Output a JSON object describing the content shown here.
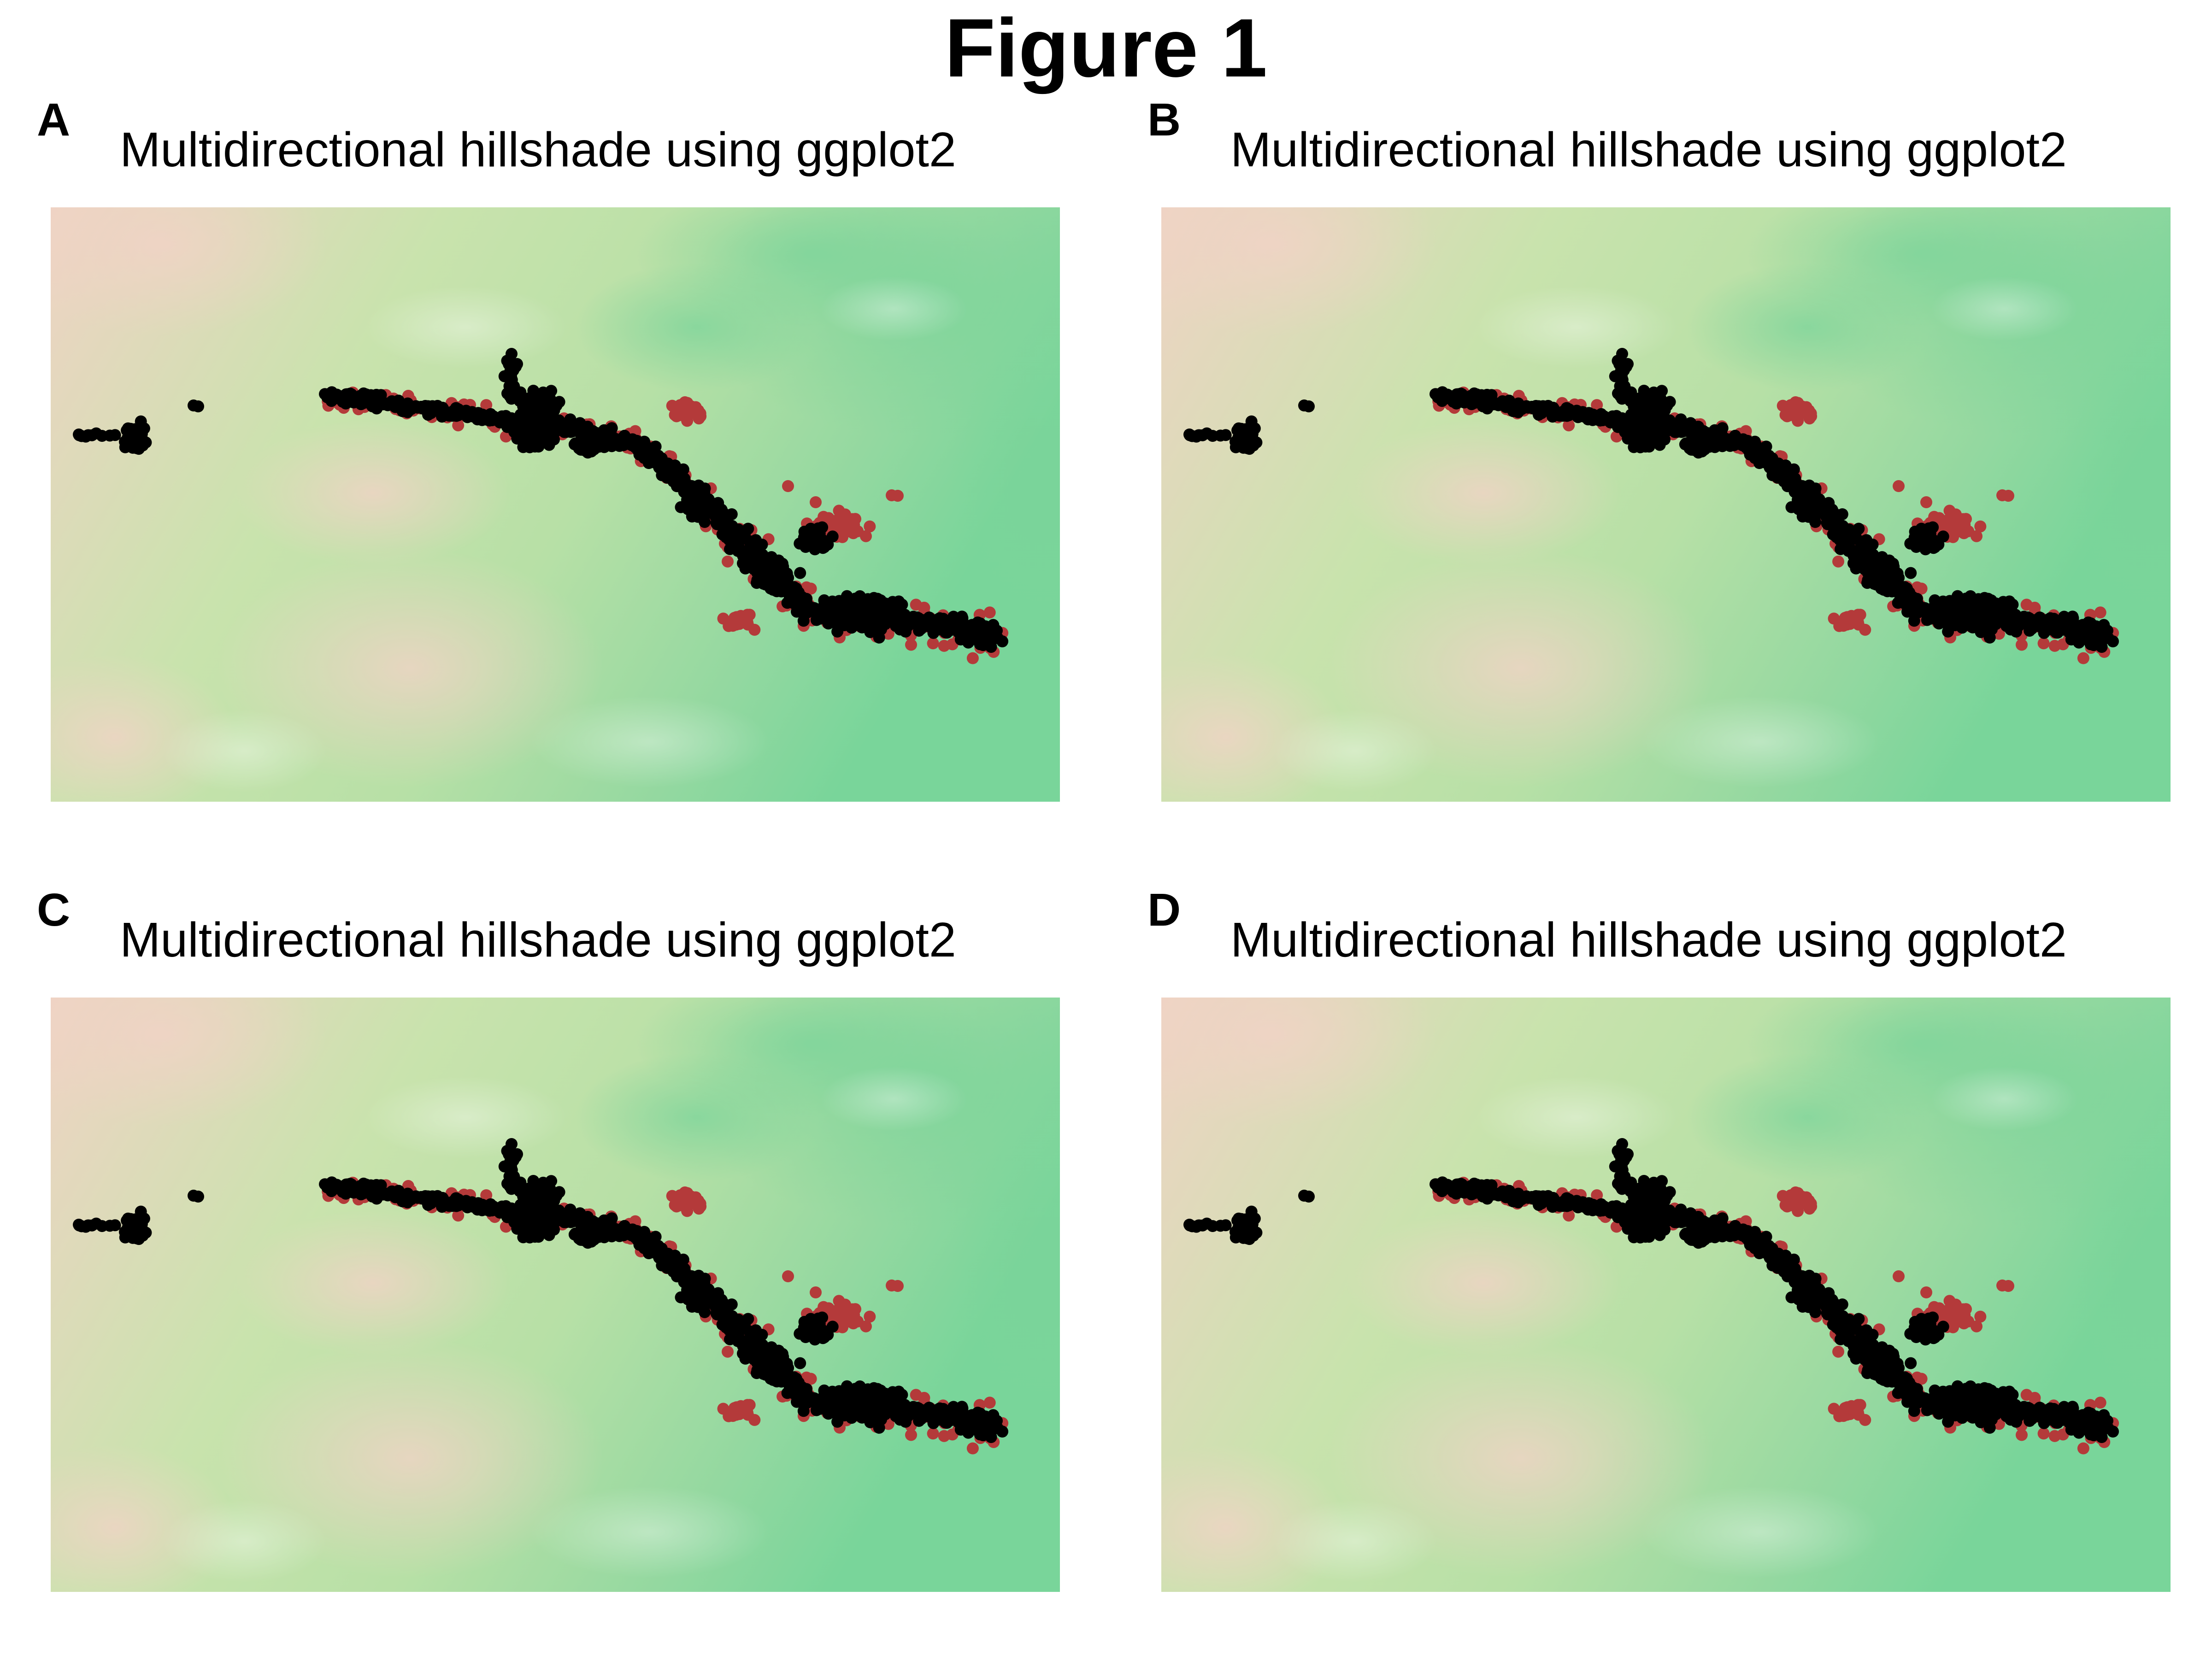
{
  "figure": {
    "title": "Figure 1"
  },
  "panels": [
    {
      "letter": "A",
      "title": "Multidirectional hillshade using ggplot2"
    },
    {
      "letter": "B",
      "title": "Multidirectional hillshade using ggplot2"
    },
    {
      "letter": "C",
      "title": "Multidirectional hillshade using ggplot2"
    },
    {
      "letter": "D",
      "title": "Multidirectional hillshade using ggplot2"
    }
  ],
  "legend": [],
  "colors": {
    "terrain_low": "#79d59a",
    "terrain_mid": "#c9e3ad",
    "terrain_high": "#efd3c4",
    "point_black": "#000000",
    "point_red": "#b43a3a"
  },
  "layers": [
    "hillshade",
    "elevation",
    "occurrence-points"
  ]
}
